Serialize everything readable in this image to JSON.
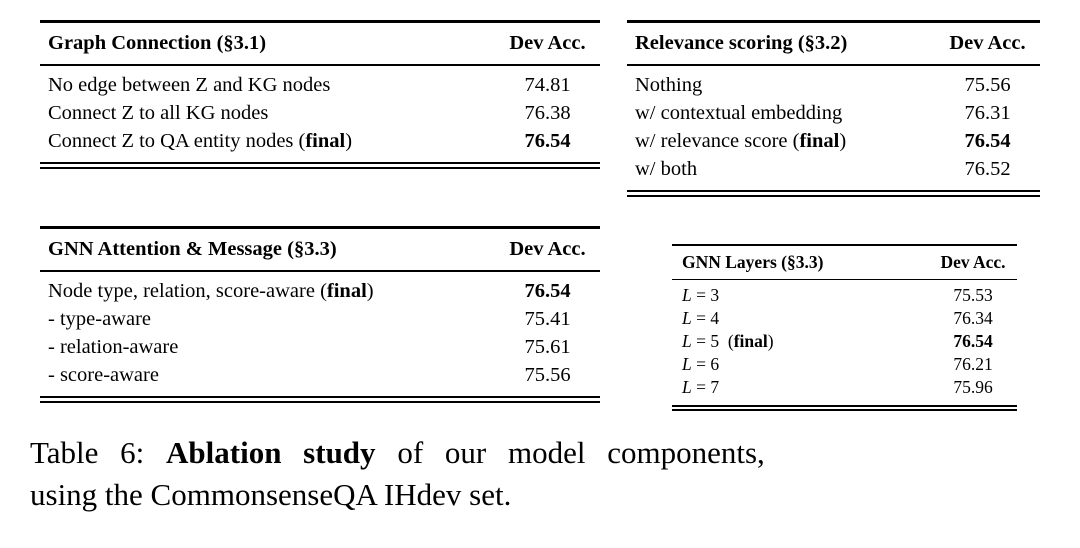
{
  "tables": {
    "graph_connection": {
      "title": "Graph Connection (§3.1)",
      "acc_header": "Dev Acc.",
      "rows": [
        {
          "pre": "No edge between Z and KG nodes",
          "value": "74.81"
        },
        {
          "pre": "Connect Z to all KG nodes",
          "value": "76.38"
        },
        {
          "pre": "Connect Z to QA entity nodes (",
          "bold": "final",
          "post": ")",
          "value": "76.54",
          "value_bold": true
        }
      ]
    },
    "relevance_scoring": {
      "title": "Relevance scoring (§3.2)",
      "acc_header": "Dev Acc.",
      "rows": [
        {
          "pre": "Nothing",
          "value": "75.56"
        },
        {
          "pre": "w/ contextual embedding",
          "value": "76.31"
        },
        {
          "pre": "w/ relevance score (",
          "bold": "final",
          "post": ")",
          "value": "76.54",
          "value_bold": true
        },
        {
          "pre": "w/ both",
          "value": "76.52"
        }
      ]
    },
    "gnn_attention": {
      "title": "GNN Attention & Message (§3.3)",
      "acc_header": "Dev Acc.",
      "rows": [
        {
          "pre": "Node type, relation, score-aware (",
          "bold": "final",
          "post": ")",
          "value": "76.54",
          "value_bold": true
        },
        {
          "pre": "- type-aware",
          "value": "75.41"
        },
        {
          "pre": "- relation-aware",
          "value": "75.61"
        },
        {
          "pre": "- score-aware",
          "value": "75.56"
        }
      ]
    },
    "gnn_layers": {
      "title": "GNN Layers (§3.3)",
      "acc_header": "Dev Acc.",
      "rows": [
        {
          "var": "L",
          "pre": " = 3",
          "value": "75.53"
        },
        {
          "var": "L",
          "pre": " = 4",
          "value": "76.34"
        },
        {
          "var": "L",
          "pre": " = 5  (",
          "bold": "final",
          "post": ")",
          "value": "76.54",
          "value_bold": true
        },
        {
          "var": "L",
          "pre": " = 6",
          "value": "76.21"
        },
        {
          "var": "L",
          "pre": " = 7",
          "value": "75.96"
        }
      ]
    }
  },
  "caption": {
    "prefix": "Table 6:",
    "bold": "Ablation study",
    "line1_rest": "of our model components,",
    "line2": "using the CommonsenseQA IHdev set."
  }
}
